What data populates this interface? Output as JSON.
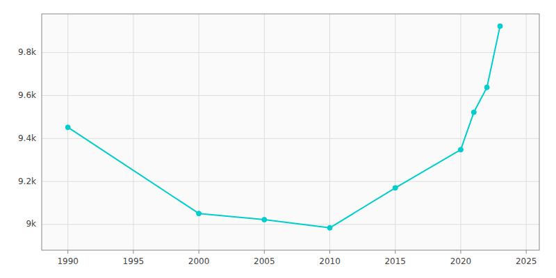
{
  "chart_data": {
    "type": "line",
    "x": [
      1990,
      2000,
      2005,
      2010,
      2015,
      2020,
      2021,
      2022,
      2023
    ],
    "values": [
      9452,
      9051,
      9022,
      8984,
      9170,
      9348,
      9522,
      9638,
      9923
    ],
    "color": "#00CDCD",
    "marker": "circle",
    "xlim": [
      1988,
      2026
    ],
    "ylim": [
      8880,
      9980
    ],
    "xticks": [
      1990,
      1995,
      2000,
      2005,
      2010,
      2015,
      2020,
      2025
    ],
    "yticks": [
      {
        "value": 9000,
        "label": "9k"
      },
      {
        "value": 9200,
        "label": "9.2k"
      },
      {
        "value": 9400,
        "label": "9.4k"
      },
      {
        "value": 9600,
        "label": "9.6k"
      },
      {
        "value": 9800,
        "label": "9.8k"
      }
    ],
    "grid": true
  }
}
